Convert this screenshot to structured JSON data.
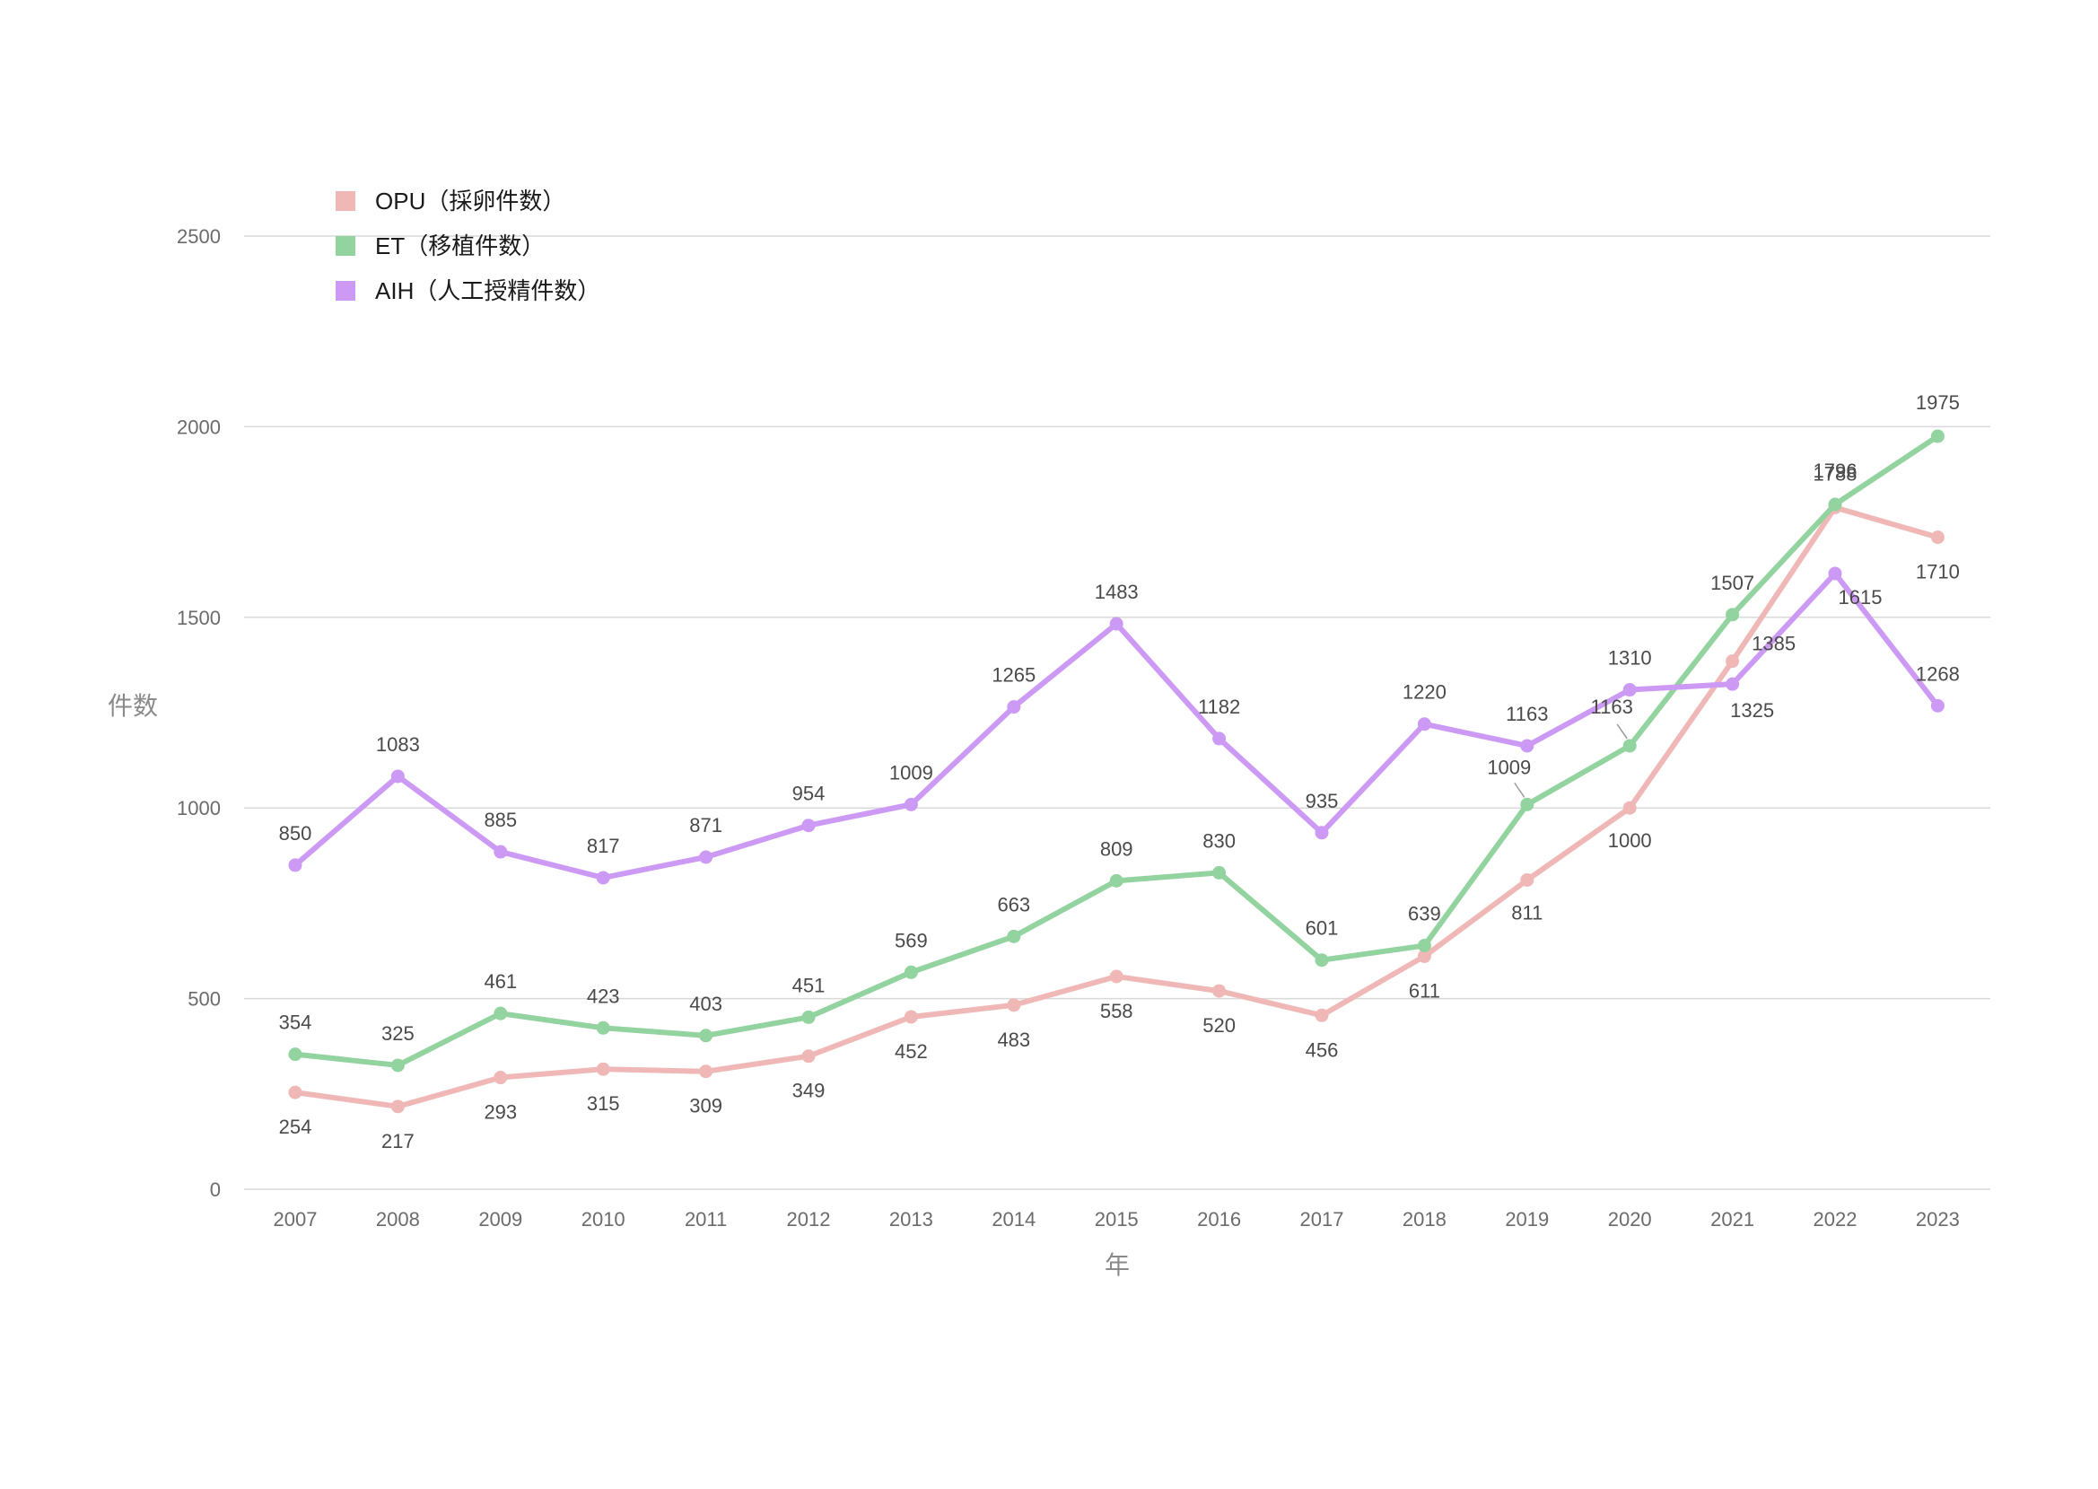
{
  "chart_data": {
    "type": "line",
    "title": "",
    "xlabel": "年",
    "ylabel": "件数",
    "ylim": [
      0,
      2500
    ],
    "yticks": [
      0,
      500,
      1000,
      1500,
      2000,
      2500
    ],
    "grid": true,
    "legend_position": "top-left",
    "categories": [
      "2007",
      "2008",
      "2009",
      "2010",
      "2011",
      "2012",
      "2013",
      "2014",
      "2015",
      "2016",
      "2017",
      "2018",
      "2019",
      "2020",
      "2021",
      "2022",
      "2023"
    ],
    "series": [
      {
        "name": "OPU（採卵件数）",
        "color": "#efb8b6",
        "values": [
          254,
          217,
          293,
          315,
          309,
          349,
          452,
          483,
          558,
          520,
          456,
          611,
          811,
          1000,
          1385,
          1788,
          1710
        ]
      },
      {
        "name": "ET（移植件数）",
        "color": "#93d39f",
        "values": [
          354,
          325,
          461,
          423,
          403,
          451,
          569,
          663,
          809,
          830,
          601,
          639,
          1009,
          1163,
          1507,
          1796,
          1975
        ]
      },
      {
        "name": "AIH（人工授精件数）",
        "color": "#cc99f5",
        "values": [
          850,
          1083,
          885,
          817,
          871,
          954,
          1009,
          1265,
          1483,
          1182,
          935,
          1220,
          1163,
          1310,
          1325,
          1615,
          1268
        ]
      }
    ]
  }
}
